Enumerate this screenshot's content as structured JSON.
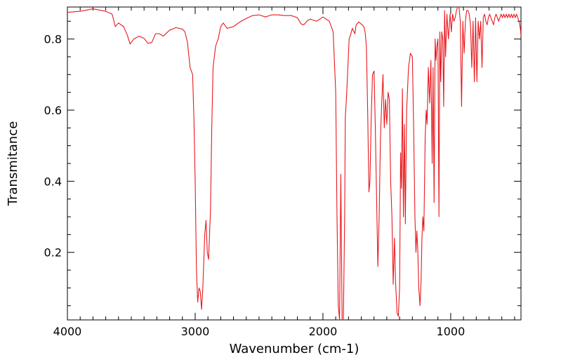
{
  "chart_data": {
    "type": "line",
    "xlabel": "Wavenumber (cm-1)",
    "ylabel": "Transmitance",
    "xlim": [
      4000,
      450
    ],
    "x_reversed": true,
    "ylim": [
      0.01,
      0.89
    ],
    "x_major_ticks": [
      4000,
      3000,
      2000,
      1000
    ],
    "x_tick_labels": [
      "4000",
      "3000",
      "2000",
      "1000"
    ],
    "y_major_ticks": [
      0.2,
      0.4,
      0.6,
      0.8
    ],
    "y_tick_labels": [
      "0.2",
      "0.4",
      "0.6",
      "0.8"
    ],
    "grid": false,
    "line_color": "#e8191e",
    "series": [
      {
        "points": [
          [
            4000,
            0.875
          ],
          [
            3900,
            0.878
          ],
          [
            3800,
            0.885
          ],
          [
            3700,
            0.878
          ],
          [
            3650,
            0.87
          ],
          [
            3625,
            0.835
          ],
          [
            3600,
            0.845
          ],
          [
            3560,
            0.835
          ],
          [
            3530,
            0.81
          ],
          [
            3510,
            0.786
          ],
          [
            3480,
            0.8
          ],
          [
            3440,
            0.808
          ],
          [
            3400,
            0.802
          ],
          [
            3370,
            0.788
          ],
          [
            3340,
            0.79
          ],
          [
            3310,
            0.815
          ],
          [
            3280,
            0.815
          ],
          [
            3250,
            0.808
          ],
          [
            3200,
            0.825
          ],
          [
            3150,
            0.832
          ],
          [
            3100,
            0.828
          ],
          [
            3080,
            0.82
          ],
          [
            3060,
            0.79
          ],
          [
            3040,
            0.72
          ],
          [
            3020,
            0.7
          ],
          [
            3010,
            0.58
          ],
          [
            3000,
            0.4
          ],
          [
            2990,
            0.15
          ],
          [
            2980,
            0.06
          ],
          [
            2970,
            0.1
          ],
          [
            2960,
            0.09
          ],
          [
            2950,
            0.04
          ],
          [
            2940,
            0.1
          ],
          [
            2925,
            0.25
          ],
          [
            2915,
            0.29
          ],
          [
            2905,
            0.2
          ],
          [
            2895,
            0.18
          ],
          [
            2880,
            0.32
          ],
          [
            2870,
            0.55
          ],
          [
            2860,
            0.72
          ],
          [
            2840,
            0.78
          ],
          [
            2820,
            0.8
          ],
          [
            2800,
            0.835
          ],
          [
            2780,
            0.845
          ],
          [
            2750,
            0.83
          ],
          [
            2700,
            0.835
          ],
          [
            2650,
            0.848
          ],
          [
            2600,
            0.858
          ],
          [
            2550,
            0.866
          ],
          [
            2500,
            0.868
          ],
          [
            2450,
            0.862
          ],
          [
            2400,
            0.868
          ],
          [
            2350,
            0.868
          ],
          [
            2300,
            0.866
          ],
          [
            2250,
            0.866
          ],
          [
            2200,
            0.86
          ],
          [
            2170,
            0.842
          ],
          [
            2150,
            0.84
          ],
          [
            2120,
            0.852
          ],
          [
            2100,
            0.856
          ],
          [
            2050,
            0.85
          ],
          [
            2000,
            0.862
          ],
          [
            1950,
            0.85
          ],
          [
            1920,
            0.82
          ],
          [
            1900,
            0.65
          ],
          [
            1890,
            0.3
          ],
          [
            1880,
            0.05
          ],
          [
            1870,
            0.01
          ],
          [
            1860,
            0.42
          ],
          [
            1850,
            0.01
          ],
          [
            1840,
            0.01
          ],
          [
            1830,
            0.3
          ],
          [
            1825,
            0.58
          ],
          [
            1815,
            0.64
          ],
          [
            1805,
            0.72
          ],
          [
            1795,
            0.8
          ],
          [
            1785,
            0.81
          ],
          [
            1770,
            0.83
          ],
          [
            1750,
            0.815
          ],
          [
            1740,
            0.84
          ],
          [
            1720,
            0.848
          ],
          [
            1700,
            0.842
          ],
          [
            1680,
            0.835
          ],
          [
            1670,
            0.82
          ],
          [
            1660,
            0.78
          ],
          [
            1650,
            0.6
          ],
          [
            1640,
            0.37
          ],
          [
            1632,
            0.4
          ],
          [
            1622,
            0.58
          ],
          [
            1612,
            0.7
          ],
          [
            1600,
            0.71
          ],
          [
            1590,
            0.55
          ],
          [
            1580,
            0.35
          ],
          [
            1570,
            0.16
          ],
          [
            1560,
            0.3
          ],
          [
            1550,
            0.52
          ],
          [
            1540,
            0.62
          ],
          [
            1530,
            0.7
          ],
          [
            1520,
            0.55
          ],
          [
            1510,
            0.63
          ],
          [
            1500,
            0.56
          ],
          [
            1490,
            0.65
          ],
          [
            1480,
            0.63
          ],
          [
            1470,
            0.4
          ],
          [
            1460,
            0.3
          ],
          [
            1450,
            0.11
          ],
          [
            1440,
            0.24
          ],
          [
            1432,
            0.12
          ],
          [
            1420,
            0.03
          ],
          [
            1410,
            0.02
          ],
          [
            1400,
            0.1
          ],
          [
            1392,
            0.48
          ],
          [
            1385,
            0.38
          ],
          [
            1378,
            0.66
          ],
          [
            1370,
            0.3
          ],
          [
            1362,
            0.56
          ],
          [
            1355,
            0.28
          ],
          [
            1345,
            0.6
          ],
          [
            1330,
            0.72
          ],
          [
            1315,
            0.76
          ],
          [
            1300,
            0.75
          ],
          [
            1290,
            0.55
          ],
          [
            1280,
            0.3
          ],
          [
            1272,
            0.2
          ],
          [
            1265,
            0.26
          ],
          [
            1258,
            0.21
          ],
          [
            1250,
            0.1
          ],
          [
            1240,
            0.05
          ],
          [
            1232,
            0.12
          ],
          [
            1225,
            0.24
          ],
          [
            1218,
            0.3
          ],
          [
            1210,
            0.26
          ],
          [
            1200,
            0.52
          ],
          [
            1192,
            0.6
          ],
          [
            1185,
            0.56
          ],
          [
            1175,
            0.72
          ],
          [
            1165,
            0.62
          ],
          [
            1155,
            0.74
          ],
          [
            1145,
            0.45
          ],
          [
            1138,
            0.72
          ],
          [
            1130,
            0.34
          ],
          [
            1122,
            0.8
          ],
          [
            1115,
            0.74
          ],
          [
            1108,
            0.78
          ],
          [
            1100,
            0.8
          ],
          [
            1092,
            0.3
          ],
          [
            1085,
            0.82
          ],
          [
            1078,
            0.68
          ],
          [
            1070,
            0.82
          ],
          [
            1062,
            0.8
          ],
          [
            1055,
            0.61
          ],
          [
            1048,
            0.88
          ],
          [
            1040,
            0.75
          ],
          [
            1030,
            0.87
          ],
          [
            1018,
            0.8
          ],
          [
            1005,
            0.87
          ],
          [
            995,
            0.82
          ],
          [
            985,
            0.87
          ],
          [
            975,
            0.85
          ],
          [
            965,
            0.86
          ],
          [
            955,
            0.88
          ],
          [
            945,
            0.89
          ],
          [
            935,
            0.89
          ],
          [
            925,
            0.85
          ],
          [
            915,
            0.61
          ],
          [
            905,
            0.85
          ],
          [
            895,
            0.76
          ],
          [
            885,
            0.85
          ],
          [
            875,
            0.88
          ],
          [
            865,
            0.88
          ],
          [
            855,
            0.87
          ],
          [
            845,
            0.84
          ],
          [
            835,
            0.72
          ],
          [
            825,
            0.85
          ],
          [
            815,
            0.68
          ],
          [
            805,
            0.86
          ],
          [
            795,
            0.68
          ],
          [
            785,
            0.85
          ],
          [
            775,
            0.8
          ],
          [
            765,
            0.85
          ],
          [
            755,
            0.72
          ],
          [
            745,
            0.86
          ],
          [
            735,
            0.87
          ],
          [
            725,
            0.85
          ],
          [
            715,
            0.84
          ],
          [
            705,
            0.86
          ],
          [
            695,
            0.87
          ],
          [
            685,
            0.86
          ],
          [
            675,
            0.85
          ],
          [
            665,
            0.84
          ],
          [
            655,
            0.86
          ],
          [
            645,
            0.87
          ],
          [
            635,
            0.86
          ],
          [
            625,
            0.85
          ],
          [
            615,
            0.86
          ],
          [
            605,
            0.87
          ],
          [
            595,
            0.86
          ],
          [
            585,
            0.87
          ],
          [
            575,
            0.86
          ],
          [
            565,
            0.87
          ],
          [
            555,
            0.86
          ],
          [
            545,
            0.87
          ],
          [
            535,
            0.86
          ],
          [
            525,
            0.87
          ],
          [
            515,
            0.86
          ],
          [
            505,
            0.87
          ],
          [
            495,
            0.86
          ],
          [
            485,
            0.87
          ],
          [
            475,
            0.86
          ],
          [
            465,
            0.85
          ],
          [
            455,
            0.83
          ],
          [
            450,
            0.81
          ]
        ]
      }
    ]
  }
}
